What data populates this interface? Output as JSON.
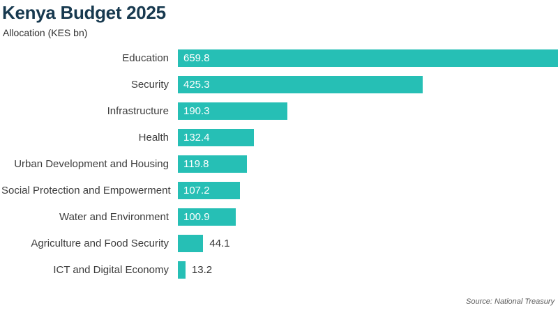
{
  "header": {
    "title": "Kenya Budget 2025",
    "subtitle": "Allocation (KES bn)"
  },
  "footer": {
    "source": "Source: National Treasury"
  },
  "colors": {
    "bar": "#26bfb5",
    "title": "#17394f",
    "category_label": "#3d3d3d",
    "value_inside": "#ffffff",
    "value_outside": "#333333",
    "source": "#595959"
  },
  "chart_data": {
    "type": "bar",
    "orientation": "horizontal",
    "title": "Kenya Budget 2025",
    "subtitle": "Allocation (KES bn)",
    "xlabel": "",
    "ylabel": "",
    "categories": [
      "Education",
      "Security",
      "Infrastructure",
      "Health",
      "Urban Development and Housing",
      "Social Protection and Empowerment",
      "Water and Environment",
      "Agriculture and Food Security",
      "ICT and Digital Economy"
    ],
    "values": [
      659.8,
      425.3,
      190.3,
      132.4,
      119.8,
      107.2,
      100.9,
      44.1,
      13.2
    ],
    "value_labels": [
      "659.8",
      "425.3",
      "190.3",
      "132.4",
      "119.8",
      "107.2",
      "100.9",
      "44.1",
      "13.2"
    ],
    "xlim": [
      0,
      659.8
    ],
    "grid": false,
    "legend": false,
    "source": "Source: National Treasury"
  }
}
